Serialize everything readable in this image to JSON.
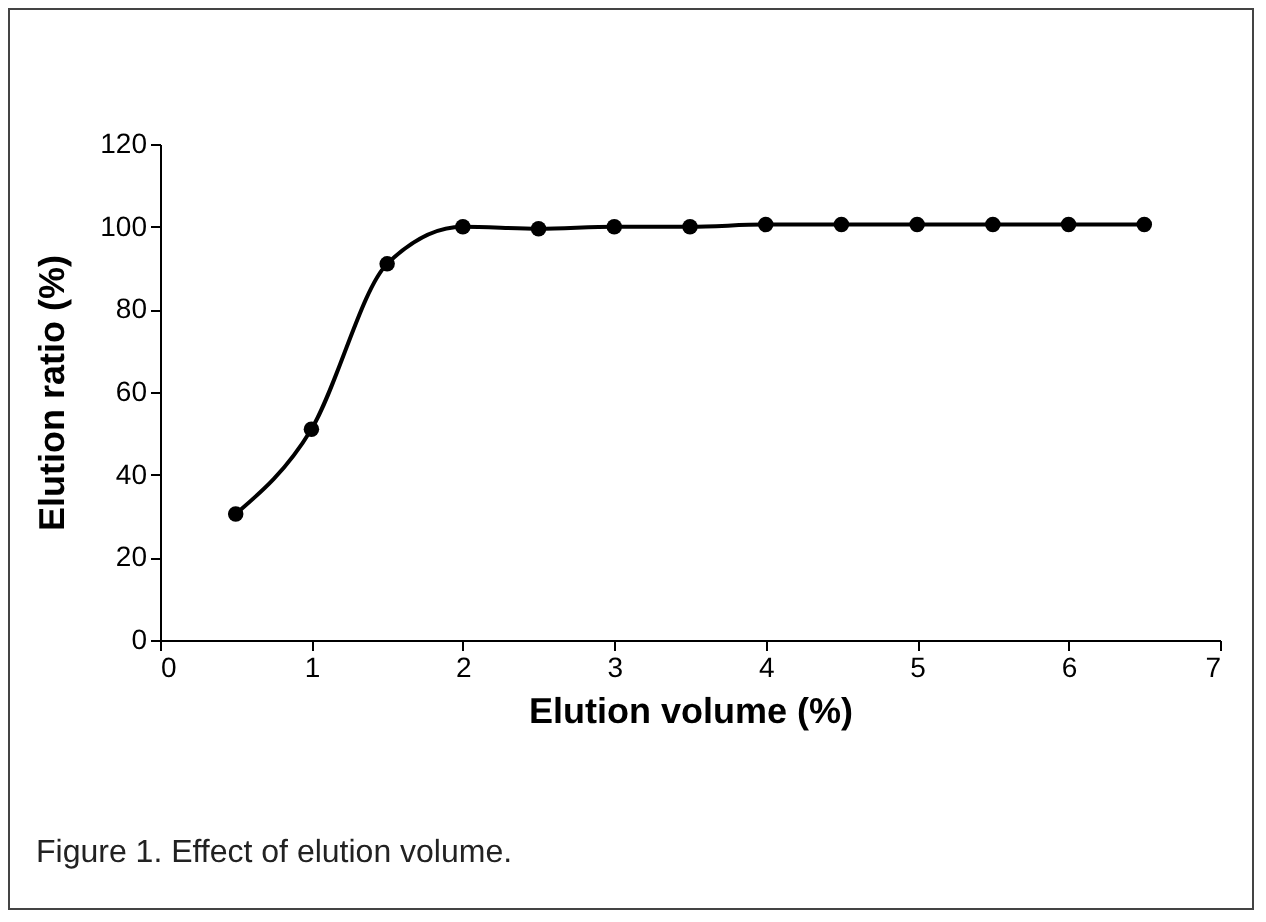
{
  "chart_data": {
    "type": "line",
    "xlabel": "Elution volume (%)",
    "ylabel": "Elution ratio (%)",
    "annotations": [
      "Figure 1. Effect of elution volume."
    ],
    "x": [
      0.5,
      1,
      1.5,
      2,
      2.5,
      3,
      3.5,
      4,
      4.5,
      5,
      5.5,
      6,
      6.5
    ],
    "series": [
      {
        "color": "#000000",
        "values": [
          30.5,
          51,
          91,
          100,
          99.5,
          100,
          100,
          100.5,
          100.5,
          100.5,
          100.5,
          100.5,
          100.5
        ]
      }
    ],
    "xlim": [
      0,
      7
    ],
    "xticks": [
      0,
      1,
      2,
      3,
      4,
      5,
      6,
      7
    ],
    "ylim": [
      0,
      120
    ],
    "yticks": [
      0,
      20,
      40,
      60,
      80,
      100,
      120
    ],
    "grid": false,
    "legend": false,
    "marker": "circle",
    "line_style": "solid"
  }
}
